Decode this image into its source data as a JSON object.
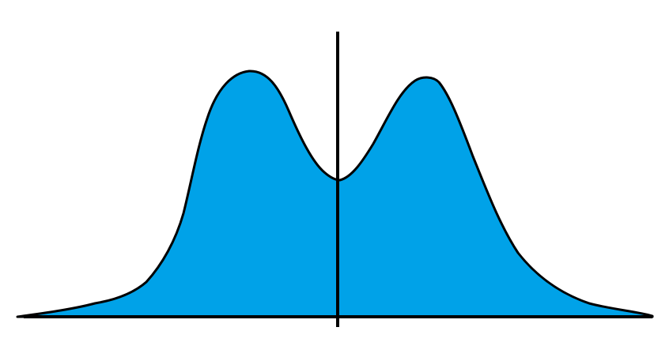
{
  "diagram": {
    "shape": "bimodal-distribution-curve",
    "colors": {
      "fill": "#00a2e8",
      "outline": "#000000",
      "background": "#ffffff"
    }
  }
}
